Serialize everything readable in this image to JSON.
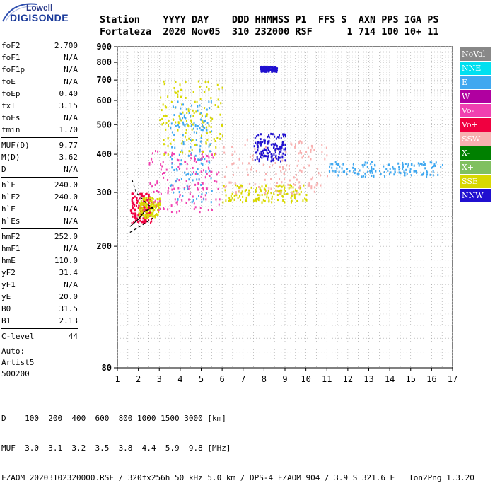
{
  "logo": {
    "line1": "Lowell",
    "line2": "DIGISONDE"
  },
  "header": {
    "labels": "Station    YYYY DAY    DDD HHMMSS P1  FFS S  AXN PPS IGA PS",
    "values": "Fortaleza  2020 Nov05  310 232000 RSF      1 714 100 10+ 11"
  },
  "params": {
    "group1": [
      {
        "label": "foF2",
        "value": "2.700"
      },
      {
        "label": "foF1",
        "value": "N/A"
      },
      {
        "label": "foF1p",
        "value": "N/A"
      },
      {
        "label": "foE",
        "value": "N/A"
      },
      {
        "label": "foEp",
        "value": "0.40"
      },
      {
        "label": "fxI",
        "value": "3.15"
      },
      {
        "label": "foEs",
        "value": "N/A"
      },
      {
        "label": "fmin",
        "value": "1.70"
      }
    ],
    "group2": [
      {
        "label": "MUF(D)",
        "value": "9.77"
      },
      {
        "label": "M(D)",
        "value": "3.62"
      },
      {
        "label": "D",
        "value": "N/A"
      }
    ],
    "group3": [
      {
        "label": "h`F",
        "value": "240.0"
      },
      {
        "label": "h`F2",
        "value": "240.0"
      },
      {
        "label": "h`E",
        "value": "N/A"
      },
      {
        "label": "h`Es",
        "value": "N/A"
      }
    ],
    "group4": [
      {
        "label": "hmF2",
        "value": "252.0"
      },
      {
        "label": "hmF1",
        "value": "N/A"
      },
      {
        "label": "hmE",
        "value": "110.0"
      },
      {
        "label": "yF2",
        "value": "31.4"
      },
      {
        "label": "yF1",
        "value": "N/A"
      },
      {
        "label": "yE",
        "value": "20.0"
      },
      {
        "label": "B0",
        "value": "31.5"
      },
      {
        "label": "B1",
        "value": "2.13"
      }
    ],
    "clevel": {
      "label": "C-level",
      "value": "44"
    },
    "auto": [
      "Auto:",
      "Artist5",
      "500200"
    ]
  },
  "legend": [
    {
      "label": "NoVal",
      "color": "#888888"
    },
    {
      "label": "NNE",
      "color": "#00e0f0"
    },
    {
      "label": "E",
      "color": "#40a8f0"
    },
    {
      "label": "W",
      "color": "#b000a0"
    },
    {
      "label": "Vo-",
      "color": "#f040b0"
    },
    {
      "label": "Vo+",
      "color": "#f00040"
    },
    {
      "label": "SSW",
      "color": "#f8b0b0"
    },
    {
      "label": "X-",
      "color": "#008000"
    },
    {
      "label": "X+",
      "color": "#80c060"
    },
    {
      "label": "SSE",
      "color": "#d8d800"
    },
    {
      "label": "NNW",
      "color": "#2010d0"
    }
  ],
  "chart_data": {
    "type": "scatter",
    "title": "",
    "xlabel": "",
    "ylabel": "",
    "xlim": [
      1,
      17
    ],
    "ylim": [
      80,
      900
    ],
    "y_scale": "log",
    "x_ticks": [
      1,
      2,
      3,
      4,
      5,
      6,
      7,
      8,
      9,
      10,
      11,
      12,
      13,
      14,
      15,
      16,
      17
    ],
    "y_ticks": [
      80,
      200,
      300,
      400,
      500,
      600,
      700,
      800,
      900
    ],
    "grid": true,
    "legend_position": "right",
    "clusters": [
      {
        "x": [
          1.6,
          2.6
        ],
        "y": [
          240,
          300
        ],
        "color": "#f00040"
      },
      {
        "x": [
          2.0,
          3.0
        ],
        "y": [
          250,
          290
        ],
        "color": "#d8d800"
      },
      {
        "x": [
          2.5,
          6.0
        ],
        "y": [
          260,
          420
        ],
        "color": "#f040b0"
      },
      {
        "x": [
          3.0,
          6.0
        ],
        "y": [
          400,
          700
        ],
        "color": "#d8d800"
      },
      {
        "x": [
          3.5,
          5.5
        ],
        "y": [
          280,
          600
        ],
        "color": "#40a8f0"
      },
      {
        "x": [
          6.0,
          10.0
        ],
        "y": [
          280,
          320
        ],
        "color": "#d8d800"
      },
      {
        "x": [
          6.0,
          11.0
        ],
        "y": [
          300,
          450
        ],
        "color": "#f8b0b0"
      },
      {
        "x": [
          7.5,
          9.0
        ],
        "y": [
          380,
          470
        ],
        "color": "#2010d0"
      },
      {
        "x": [
          7.8,
          8.6
        ],
        "y": [
          750,
          780
        ],
        "color": "#2010d0"
      },
      {
        "x": [
          11.0,
          16.5
        ],
        "y": [
          340,
          380
        ],
        "color": "#40a8f0"
      }
    ],
    "trace_curves": [
      {
        "name": "",
        "color": "#000000",
        "dash": false,
        "points": [
          [
            1.6,
            232
          ],
          [
            2.0,
            245
          ],
          [
            2.3,
            260
          ],
          [
            2.7,
            268
          ]
        ]
      },
      {
        "name": "",
        "color": "#000000",
        "dash": true,
        "points": [
          [
            1.7,
            330
          ],
          [
            1.9,
            300
          ],
          [
            2.3,
            280
          ],
          [
            2.8,
            262
          ]
        ]
      },
      {
        "name": "",
        "color": "#000000",
        "dash": true,
        "points": [
          [
            1.6,
            222
          ],
          [
            2.2,
            235
          ],
          [
            2.8,
            250
          ]
        ]
      }
    ]
  },
  "bottom": {
    "line1": "D    100  200  400  600  800 1000 1500 3000 [km]",
    "line2": "MUF  3.0  3.1  3.2  3.5  3.8  4.4  5.9  9.8 [MHz]",
    "line3": "FZAOM_20203102320000.RSF / 320fx256h 50 kHz 5.0 km / DPS-4 FZAOM 904 / 3.9 S 321.6 E   Ion2Png 1.3.20"
  }
}
